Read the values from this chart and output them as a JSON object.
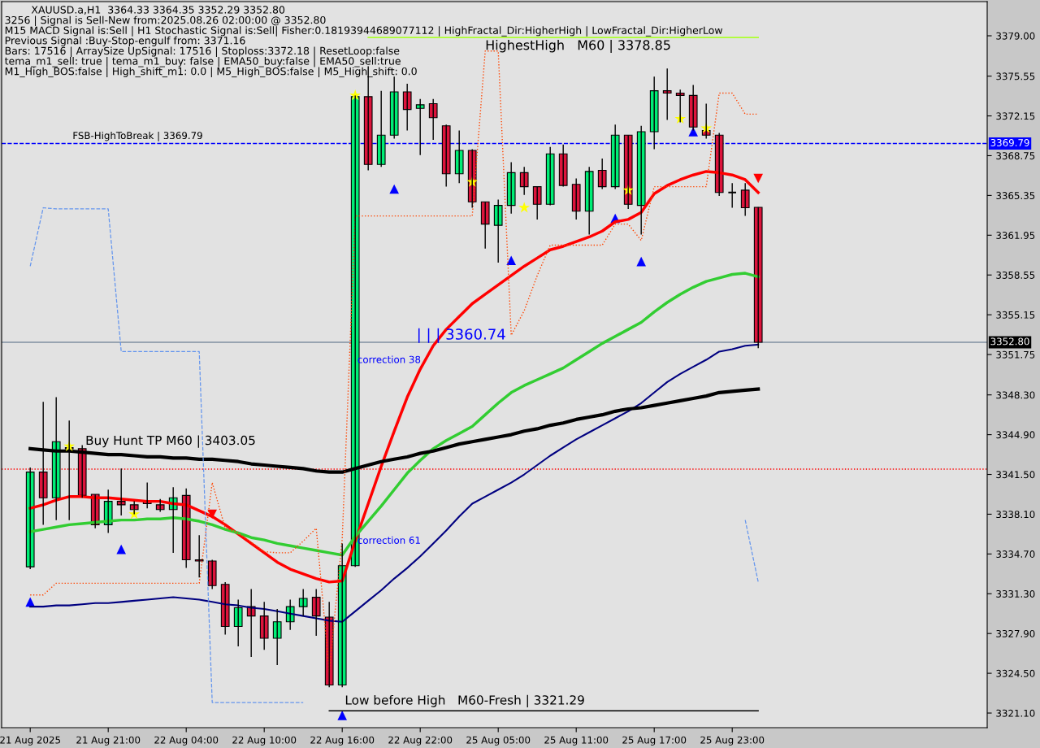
{
  "chart_data": {
    "type": "candlestick",
    "title": "XAUUSD.a,H1  3364.33 3364.35 3352.29 3352.80",
    "categories": [
      "21 Aug 2025",
      null,
      null,
      null,
      null,
      null,
      "21 Aug 21:00",
      null,
      null,
      null,
      null,
      null,
      "22 Aug 04:00",
      null,
      null,
      null,
      null,
      null,
      "22 Aug 10:00",
      null,
      null,
      null,
      null,
      null,
      "22 Aug 16:00",
      null,
      null,
      null,
      null,
      null,
      "22 Aug 22:00",
      null,
      null,
      null,
      null,
      null,
      "25 Aug 05:00",
      null,
      null,
      null,
      null,
      null,
      "25 Aug 11:00",
      null,
      null,
      null,
      null,
      null,
      "25 Aug 17:00",
      null,
      null,
      null,
      null,
      null,
      "25 Aug 23:00",
      null,
      null
    ],
    "ohlc": [
      [
        3333.6,
        3342.1,
        3333.4,
        3341.7
      ],
      [
        3341.7,
        3347.7,
        3337.2,
        3339.5
      ],
      [
        3339.5,
        3348.1,
        3337.6,
        3344.3
      ],
      [
        3343.8,
        3346.1,
        3337.6,
        3343.7
      ],
      [
        3343.7,
        3344.0,
        3339.5,
        3339.7
      ],
      [
        3339.8,
        3339.8,
        3336.9,
        3337.2
      ],
      [
        3337.2,
        3340.2,
        3336.5,
        3339.2
      ],
      [
        3339.2,
        3342.0,
        3338.0,
        3338.9
      ],
      [
        3338.9,
        3339.2,
        3338.1,
        3338.5
      ],
      [
        3339.2,
        3340.8,
        3338.6,
        3339.0
      ],
      [
        3338.9,
        3339.4,
        3338.3,
        3338.5
      ],
      [
        3338.5,
        3340.4,
        3334.8,
        3339.5
      ],
      [
        3339.7,
        3340.3,
        3333.5,
        3334.2
      ],
      [
        3334.2,
        3336.3,
        3332.7,
        3334.1
      ],
      [
        3334.1,
        3334.2,
        3331.7,
        3332.0
      ],
      [
        3332.1,
        3332.3,
        3327.8,
        3328.5
      ],
      [
        3328.5,
        3330.8,
        3326.8,
        3330.1
      ],
      [
        3330.2,
        3331.7,
        3325.9,
        3329.4
      ],
      [
        3329.4,
        3330.6,
        3326.5,
        3327.5
      ],
      [
        3327.5,
        3330.0,
        3325.2,
        3328.9
      ],
      [
        3328.9,
        3330.8,
        3328.2,
        3330.2
      ],
      [
        3330.2,
        3331.7,
        3329.4,
        3330.9
      ],
      [
        3331.0,
        3331.7,
        3327.7,
        3329.4
      ],
      [
        3329.3,
        3330.6,
        3323.3,
        3323.5
      ],
      [
        3323.5,
        3335.6,
        3323.3,
        3333.7
      ],
      [
        3333.7,
        3373.9,
        3333.6,
        3373.8
      ],
      [
        3373.8,
        3376.4,
        3367.5,
        3368.0
      ],
      [
        3368.0,
        3374.3,
        3367.8,
        3370.5
      ],
      [
        3370.5,
        3375.5,
        3370.2,
        3374.2
      ],
      [
        3374.2,
        3374.9,
        3370.9,
        3372.7
      ],
      [
        3372.8,
        3373.6,
        3368.8,
        3373.1
      ],
      [
        3373.2,
        3373.6,
        3370.1,
        3372.0
      ],
      [
        3371.3,
        3371.4,
        3366.1,
        3367.2
      ],
      [
        3367.2,
        3370.9,
        3366.4,
        3369.2
      ],
      [
        3369.2,
        3369.3,
        3364.3,
        3364.8
      ],
      [
        3364.8,
        3364.8,
        3360.8,
        3362.9
      ],
      [
        3362.8,
        3365.0,
        3359.6,
        3364.5
      ],
      [
        3364.5,
        3368.2,
        3363.8,
        3367.3
      ],
      [
        3367.3,
        3367.8,
        3365.4,
        3366.1
      ],
      [
        3366.1,
        3366.1,
        3363.3,
        3364.6
      ],
      [
        3364.6,
        3369.5,
        3364.5,
        3368.9
      ],
      [
        3368.9,
        3369.7,
        3366.1,
        3366.2
      ],
      [
        3366.3,
        3366.8,
        3363.3,
        3364.0
      ],
      [
        3364.0,
        3367.8,
        3362.0,
        3367.4
      ],
      [
        3367.5,
        3368.5,
        3365.9,
        3366.1
      ],
      [
        3366.1,
        3371.4,
        3365.9,
        3370.5
      ],
      [
        3370.5,
        3370.5,
        3364.2,
        3364.6
      ],
      [
        3364.5,
        3371.3,
        3362.0,
        3370.8
      ],
      [
        3370.8,
        3375.5,
        3369.3,
        3374.3
      ],
      [
        3374.3,
        3376.2,
        3371.8,
        3374.1
      ],
      [
        3374.1,
        3374.4,
        3371.6,
        3373.9
      ],
      [
        3373.9,
        3374.8,
        3370.9,
        3371.2
      ],
      [
        3370.9,
        3373.2,
        3370.2,
        3370.5
      ],
      [
        3370.5,
        3370.7,
        3365.3,
        3365.6
      ],
      [
        3365.6,
        3366.4,
        3364.3,
        3365.6
      ],
      [
        3365.8,
        3366.4,
        3363.6,
        3364.3
      ],
      [
        3364.33,
        3364.35,
        3352.29,
        3352.8
      ]
    ],
    "colors": [
      "#00ee76",
      "#dc143c",
      "#00ee76",
      "#dc143c",
      "#dc143c",
      "#dc143c",
      "#00ee76",
      "#dc143c",
      "#dc143c",
      "#dc143c",
      "#dc143c",
      "#00ee76",
      "#dc143c",
      "#dc143c",
      "#dc143c",
      "#dc143c",
      "#00ee76",
      "#dc143c",
      "#dc143c",
      "#00ee76",
      "#00ee76",
      "#00ee76",
      "#dc143c",
      "#dc143c",
      "#00ee76",
      "#00ee76",
      "#dc143c",
      "#00ee76",
      "#00ee76",
      "#dc143c",
      "#00ee76",
      "#dc143c",
      "#dc143c",
      "#00ee76",
      "#dc143c",
      "#dc143c",
      "#00ee76",
      "#00ee76",
      "#dc143c",
      "#dc143c",
      "#00ee76",
      "#dc143c",
      "#dc143c",
      "#00ee76",
      "#dc143c",
      "#00ee76",
      "#dc143c",
      "#00ee76",
      "#00ee76",
      "#dc143c",
      "#dc143c",
      "#dc143c",
      "#dc143c",
      "#dc143c",
      "#000000",
      "#dc143c",
      "#dc143c"
    ],
    "series": [
      {
        "type": "line",
        "color": "#ff0000",
        "values": [
          3338.6,
          3338.9,
          3339.3,
          3339.6,
          3339.6,
          3339.5,
          3339.5,
          3339.4,
          3339.3,
          3339.2,
          3339.2,
          3339.0,
          3338.9,
          3338.4,
          3337.9,
          3337.2,
          3336.4,
          3335.6,
          3334.8,
          3334.0,
          3333.4,
          3333.0,
          3332.6,
          3332.3,
          3332.4,
          3335.8,
          3339.0,
          3342.2,
          3345.2,
          3348.1,
          3350.5,
          3352.5,
          3353.9,
          3355.0,
          3356.1,
          3356.9,
          3357.7,
          3358.5,
          3359.3,
          3360.0,
          3360.7,
          3361.0,
          3361.4,
          3361.8,
          3362.3,
          3363.1,
          3363.3,
          3363.9,
          3365.5,
          3366.2,
          3366.7,
          3367.1,
          3367.4,
          3367.3,
          3367.1,
          3366.7,
          3365.6
        ]
      },
      {
        "type": "line",
        "color": "#32cd32",
        "values": [
          3336.6,
          3336.8,
          3337.0,
          3337.2,
          3337.3,
          3337.4,
          3337.5,
          3337.6,
          3337.6,
          3337.7,
          3337.7,
          3337.8,
          3337.7,
          3337.5,
          3337.2,
          3336.8,
          3336.5,
          3336.1,
          3335.9,
          3335.6,
          3335.4,
          3335.2,
          3335.0,
          3334.8,
          3334.6,
          3336.2,
          3337.5,
          3338.8,
          3340.2,
          3341.6,
          3342.7,
          3343.7,
          3344.4,
          3345.0,
          3345.6,
          3346.6,
          3347.6,
          3348.5,
          3349.1,
          3349.6,
          3350.1,
          3350.6,
          3351.3,
          3352.0,
          3352.7,
          3353.3,
          3353.9,
          3354.5,
          3355.4,
          3356.2,
          3356.9,
          3357.5,
          3358.0,
          3358.3,
          3358.6,
          3358.7,
          3358.4
        ]
      },
      {
        "type": "line",
        "color": "#000080",
        "values": [
          3330.2,
          3330.2,
          3330.3,
          3330.3,
          3330.4,
          3330.5,
          3330.5,
          3330.6,
          3330.7,
          3330.8,
          3330.9,
          3331.0,
          3330.9,
          3330.8,
          3330.6,
          3330.4,
          3330.3,
          3330.1,
          3330.0,
          3329.8,
          3329.6,
          3329.4,
          3329.2,
          3329.0,
          3328.9,
          3329.8,
          3330.7,
          3331.6,
          3332.6,
          3333.5,
          3334.5,
          3335.6,
          3336.7,
          3337.9,
          3339.0,
          3339.6,
          3340.2,
          3340.8,
          3341.5,
          3342.3,
          3343.1,
          3343.8,
          3344.5,
          3345.1,
          3345.7,
          3346.3,
          3346.9,
          3347.6,
          3348.5,
          3349.4,
          3350.1,
          3350.7,
          3351.3,
          3352.0,
          3352.2,
          3352.5,
          3352.6
        ]
      },
      {
        "type": "line",
        "color": "#000000",
        "values": [
          3343.7,
          3343.6,
          3343.5,
          3343.5,
          3343.4,
          3343.3,
          3343.2,
          3343.2,
          3343.1,
          3343.0,
          3343.0,
          3342.9,
          3342.9,
          3342.8,
          3342.8,
          3342.7,
          3342.6,
          3342.4,
          3342.3,
          3342.2,
          3342.1,
          3342.0,
          3341.8,
          3341.7,
          3341.7,
          3342.0,
          3342.3,
          3342.6,
          3342.8,
          3343.0,
          3343.3,
          3343.5,
          3343.8,
          3344.1,
          3344.3,
          3344.5,
          3344.7,
          3344.9,
          3345.2,
          3345.4,
          3345.7,
          3345.9,
          3346.2,
          3346.4,
          3346.6,
          3346.9,
          3347.1,
          3347.2,
          3347.4,
          3347.6,
          3347.8,
          3348.0,
          3348.2,
          3348.5,
          3348.6,
          3348.7,
          3348.8
        ]
      },
      {
        "type": "line",
        "color": "#ff4500",
        "line_style": "dotted",
        "values": [
          3331.2,
          3331.2,
          3332.2,
          3332.2,
          3332.2,
          3332.2,
          3332.2,
          3332.2,
          3332.2,
          3332.2,
          3332.2,
          3332.2,
          3332.2,
          3332.2,
          3340.8,
          3336.9,
          3336.5,
          3335.7,
          3334.9,
          3334.8,
          3334.8,
          3335.8,
          3336.9,
          3324.6,
          3336.0,
          3363.6,
          3363.6,
          3363.6,
          3363.6,
          3363.6,
          3363.6,
          3363.6,
          3363.6,
          3363.6,
          3363.6,
          3377.7,
          3377.7,
          3353.4,
          3355.5,
          3358.5,
          3361.1,
          3361.1,
          3361.1,
          3361.1,
          3361.1,
          3362.9,
          3362.9,
          3361.5,
          3366.1,
          3366.1,
          3366.1,
          3366.1,
          3366.1,
          3374.1,
          3374.1,
          3372.3,
          3372.3
        ]
      },
      {
        "type": "line",
        "color": "#6495ed",
        "line_style": "dashed",
        "values": [
          3359.3,
          3364.3,
          3364.2,
          3364.2,
          3364.2,
          3364.2,
          3364.2,
          3352.0,
          3352.0,
          3352.0,
          3352.0,
          3352.0,
          3352.0,
          3352.0,
          3322.0,
          3322.0,
          3322.0,
          3322.0,
          3322.0,
          3322.0,
          3322.0,
          3322.0,
          null,
          null,
          null,
          null,
          null,
          null,
          null,
          null,
          null,
          null,
          null,
          null,
          null,
          null,
          null,
          null,
          null,
          null,
          null,
          null,
          null,
          null,
          null,
          null,
          null,
          null,
          null,
          null,
          null,
          null,
          null,
          null,
          null,
          3337.6,
          3332.3
        ]
      },
      {
        "type": "line",
        "color": "#adff2f",
        "values": [
          null,
          null,
          null,
          null,
          null,
          null,
          null,
          null,
          null,
          null,
          null,
          null,
          null,
          null,
          null,
          null,
          null,
          null,
          null,
          null,
          null,
          null,
          null,
          null,
          null,
          null,
          3378.85,
          3378.85,
          3378.85,
          3378.85,
          3378.85,
          3378.85,
          3378.85,
          3378.85,
          3378.85,
          3378.85,
          3378.85,
          3378.85,
          3378.85,
          3378.85,
          3378.85,
          3378.85,
          3378.85,
          3378.85,
          3378.85,
          3378.85,
          3378.85,
          3378.85,
          3378.85,
          3378.85,
          3378.85,
          3378.85,
          3378.85,
          3378.85,
          3378.85,
          3378.85,
          3378.85
        ]
      },
      {
        "type": "line",
        "color": "#000000",
        "values": [
          null,
          null,
          null,
          null,
          null,
          null,
          null,
          null,
          null,
          null,
          null,
          null,
          null,
          null,
          null,
          null,
          null,
          null,
          null,
          null,
          null,
          null,
          null,
          3321.29,
          3321.29,
          3321.29,
          3321.29,
          3321.29,
          3321.29,
          3321.29,
          3321.29,
          3321.29,
          3321.29,
          3321.29,
          3321.29,
          3321.29,
          3321.29,
          3321.29,
          3321.29,
          3321.29,
          3321.29,
          3321.29,
          3321.29,
          3321.29,
          3321.29,
          3321.29,
          3321.29,
          3321.29,
          3321.29,
          3321.29,
          3321.29,
          3321.29,
          3321.29,
          3321.29,
          3321.29,
          3321.29,
          3321.29
        ]
      },
      {
        "type": "scatter",
        "color": "#ffff00",
        "marker": "star",
        "values": [
          null,
          null,
          null,
          3343.9,
          null,
          null,
          null,
          null,
          3338.1,
          null,
          null,
          null,
          null,
          null,
          null,
          null,
          null,
          null,
          null,
          null,
          null,
          null,
          null,
          null,
          null,
          3373.9,
          null,
          null,
          null,
          null,
          null,
          null,
          null,
          null,
          3366.5,
          null,
          null,
          null,
          3364.3,
          null,
          null,
          null,
          null,
          null,
          null,
          null,
          3365.8,
          null,
          null,
          null,
          3371.9,
          null,
          3371.1,
          null,
          null,
          null,
          null
        ]
      },
      {
        "type": "scatter",
        "color": "#0000ff",
        "marker": "triangle",
        "values": [
          3330.6,
          null,
          null,
          null,
          null,
          null,
          null,
          3335.1,
          null,
          null,
          null,
          null,
          null,
          null,
          null,
          null,
          null,
          null,
          null,
          null,
          null,
          null,
          null,
          null,
          3320.9,
          null,
          null,
          null,
          3365.9,
          null,
          null,
          null,
          null,
          null,
          null,
          null,
          null,
          3359.8,
          null,
          null,
          null,
          null,
          null,
          null,
          null,
          3363.4,
          null,
          3359.7,
          null,
          null,
          null,
          3370.8,
          null,
          null,
          null,
          null,
          null
        ]
      },
      {
        "type": "scatter",
        "color": "#ff0000",
        "marker": "triangle_down",
        "values": [
          null,
          null,
          null,
          null,
          null,
          null,
          null,
          null,
          null,
          null,
          null,
          null,
          null,
          null,
          3338.1,
          null,
          null,
          null,
          null,
          null,
          null,
          null,
          null,
          null,
          null,
          null,
          null,
          null,
          null,
          null,
          null,
          null,
          null,
          null,
          null,
          null,
          null,
          null,
          null,
          null,
          null,
          null,
          null,
          null,
          null,
          null,
          null,
          null,
          null,
          null,
          null,
          null,
          null,
          null,
          null,
          null,
          3366.8
        ]
      }
    ],
    "ref_lines": [
      {
        "axis": "y",
        "value": 3369.79,
        "label": "3369.79",
        "color": "#0000ff",
        "line_style": "dashed"
      },
      {
        "axis": "y",
        "value": 3352.8,
        "label": "3352.80",
        "color": "#7f8fa0",
        "line_style": "solid"
      },
      {
        "axis": "y",
        "value": 3341.95,
        "label": "Buy Hunt TP M60 | 3403.05",
        "color": "#ff0000",
        "line_style": "dotted"
      }
    ],
    "annotations": [
      "3256 | Signal is Sell-New from:2025.08.26 02:00:00 @ 3352.80",
      "M15 MACD Signal is:Sell | H1 Stochastic Signal is:Sell| Fisher:0.18193944689077112 | HighFractal_Dir:HigherHigh | LowFractal_Dir:HigherLow",
      "Previous Signal :Buy-Stop-engulf from: 3371.16",
      "Bars: 17516 | ArraySize UpSignal: 17516 | Stoploss:3372.18 | ResetLoop:false",
      "tema_m1_sell: true | tema_m1_buy: false | EMA50_buy:false | EMA50_sell:true",
      "M1_High_BOS:false | High_shift_m1: 0.0 | M5_High_BOS:false | M5_High_shift: 0.0",
      "FSB-HighToBreak | 3369.79",
      "HighestHigh   M60 | 3378.85",
      "Low before High   M60-Fresh | 3321.29",
      "correction 38",
      "correction 61",
      "| | | 3360.74"
    ],
    "ylim": [
      3319.85,
      3381.92
    ],
    "yticks": [
      {
        "value": 3379.0,
        "label": "3379.00"
      },
      {
        "value": 3375.55,
        "label": "3375.55"
      },
      {
        "value": 3372.15,
        "label": "3372.15"
      },
      {
        "value": 3368.75,
        "label": "3368.75"
      },
      {
        "value": 3365.35,
        "label": "3365.35"
      },
      {
        "value": 3361.95,
        "label": "3361.95"
      },
      {
        "value": 3358.55,
        "label": "3358.55"
      },
      {
        "value": 3355.15,
        "label": "3355.15"
      },
      {
        "value": 3351.75,
        "label": "3351.75"
      },
      {
        "value": 3348.3,
        "label": "3348.30"
      },
      {
        "value": 3344.9,
        "label": "3344.90"
      },
      {
        "value": 3341.5,
        "label": "3341.50"
      },
      {
        "value": 3338.1,
        "label": "3338.10"
      },
      {
        "value": 3334.7,
        "label": "3334.70"
      },
      {
        "value": 3331.3,
        "label": "3331.30"
      },
      {
        "value": 3327.9,
        "label": "3327.90"
      },
      {
        "value": 3324.5,
        "label": "3324.50"
      },
      {
        "value": 3321.1,
        "label": "3321.10"
      }
    ]
  }
}
